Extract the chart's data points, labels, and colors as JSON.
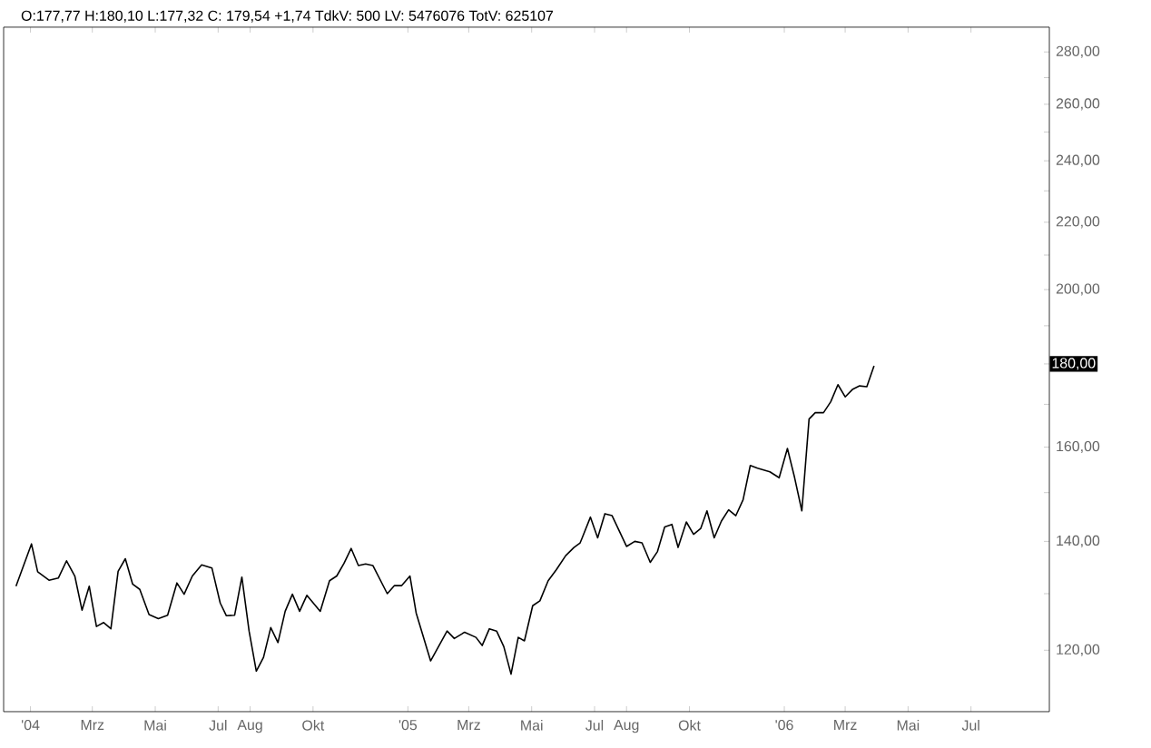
{
  "chart_data": {
    "type": "line",
    "title": "O:177,77 H:180,10 L:177,32 C: 179,54 +1,74 TdkV: 500 LV: 5476076 TotV: 625107",
    "x": [
      "2003-12-18",
      "2004-01-02",
      "2004-01-08",
      "2004-01-19",
      "2004-01-28",
      "2004-02-05",
      "2004-02-13",
      "2004-02-20",
      "2004-02-27",
      "2004-03-05",
      "2004-03-12",
      "2004-03-19",
      "2004-03-26",
      "2004-04-02",
      "2004-04-09",
      "2004-04-16",
      "2004-04-25",
      "2004-05-04",
      "2004-05-13",
      "2004-05-22",
      "2004-05-29",
      "2004-06-06",
      "2004-06-15",
      "2004-06-25",
      "2004-07-03",
      "2004-07-09",
      "2004-07-17",
      "2004-07-24",
      "2004-07-31",
      "2004-08-07",
      "2004-08-14",
      "2004-08-21",
      "2004-08-28",
      "2004-09-04",
      "2004-09-11",
      "2004-09-18",
      "2004-09-25",
      "2004-10-08",
      "2004-10-17",
      "2004-10-24",
      "2004-10-31",
      "2004-11-07",
      "2004-11-14",
      "2004-11-21",
      "2004-11-28",
      "2004-12-12",
      "2004-12-19",
      "2004-12-26",
      "2005-01-03",
      "2005-01-09",
      "2005-01-23",
      "2005-02-08",
      "2005-02-15",
      "2005-02-25",
      "2005-03-08",
      "2005-03-14",
      "2005-03-21",
      "2005-03-28",
      "2005-04-04",
      "2005-04-11",
      "2005-04-18",
      "2005-04-24",
      "2005-05-02",
      "2005-05-09",
      "2005-05-17",
      "2005-05-25",
      "2005-06-03",
      "2005-06-11",
      "2005-06-17",
      "2005-06-19",
      "2005-06-27",
      "2005-07-04",
      "2005-07-11",
      "2005-07-18",
      "2005-08-01",
      "2005-08-09",
      "2005-08-16",
      "2005-08-24",
      "2005-08-31",
      "2005-09-07",
      "2005-09-14",
      "2005-09-20",
      "2005-09-28",
      "2005-10-05",
      "2005-10-12",
      "2005-10-18",
      "2005-10-25",
      "2005-11-01",
      "2005-11-08",
      "2005-11-15",
      "2005-11-22",
      "2005-11-29",
      "2005-12-06",
      "2005-12-18",
      "2005-12-27",
      "2006-01-04",
      "2006-01-11",
      "2006-01-18",
      "2006-01-25",
      "2006-01-31",
      "2006-02-08",
      "2006-02-15",
      "2006-02-22",
      "2006-03-01",
      "2006-03-08",
      "2006-03-15",
      "2006-03-22",
      "2006-03-29"
    ],
    "series": [
      {
        "color": "#000000",
        "values": [
          131.4,
          139.5,
          134.1,
          132.5,
          132.9,
          136.2,
          133.3,
          127.0,
          131.4,
          124.1,
          124.8,
          123.7,
          134.2,
          136.6,
          131.8,
          130.8,
          126.2,
          125.5,
          126.1,
          132.0,
          129.9,
          133.3,
          135.4,
          134.8,
          128.3,
          126.0,
          126.1,
          133.1,
          123.3,
          116.5,
          118.8,
          123.9,
          121.3,
          126.8,
          129.9,
          126.8,
          129.7,
          126.8,
          132.4,
          133.3,
          135.7,
          138.6,
          135.3,
          135.6,
          135.3,
          130.0,
          131.5,
          131.5,
          133.3,
          126.5,
          118.2,
          123.3,
          122.0,
          123.1,
          122.2,
          120.8,
          123.7,
          123.3,
          120.6,
          116.0,
          122.2,
          121.6,
          127.8,
          128.7,
          132.4,
          134.5,
          137.2,
          138.8,
          139.7,
          140.7,
          144.9,
          140.7,
          145.6,
          145.2,
          139.0,
          140.0,
          139.7,
          135.9,
          138.0,
          142.9,
          143.4,
          138.8,
          143.9,
          141.4,
          142.6,
          146.2,
          140.7,
          144.1,
          146.4,
          145.2,
          148.5,
          155.9,
          155.3,
          154.5,
          153.2,
          159.7,
          153.2,
          146.2,
          166.5,
          168.0,
          168.0,
          170.6,
          174.8,
          171.8,
          173.6,
          174.5,
          174.3,
          179.5
        ]
      }
    ],
    "xlim": [
      "2003-12-06",
      "2006-09-15"
    ],
    "xticks": [
      {
        "value": "2004-01-01",
        "label": "'04"
      },
      {
        "value": "2004-03-01",
        "label": "Mrz"
      },
      {
        "value": "2004-05-01",
        "label": "Mai"
      },
      {
        "value": "2004-07-01",
        "label": "Jul"
      },
      {
        "value": "2004-08-01",
        "label": "Aug"
      },
      {
        "value": "2004-10-01",
        "label": "Okt"
      },
      {
        "value": "2005-01-01",
        "label": "'05"
      },
      {
        "value": "2005-03-01",
        "label": "Mrz"
      },
      {
        "value": "2005-05-01",
        "label": "Mai"
      },
      {
        "value": "2005-07-01",
        "label": "Jul"
      },
      {
        "value": "2005-08-01",
        "label": "Aug"
      },
      {
        "value": "2005-10-01",
        "label": "Okt"
      },
      {
        "value": "2006-01-01",
        "label": "'06"
      },
      {
        "value": "2006-03-01",
        "label": "Mrz"
      },
      {
        "value": "2006-05-01",
        "label": "Mai"
      },
      {
        "value": "2006-07-01",
        "label": "Jul"
      }
    ],
    "ylim": [
      110,
      290
    ],
    "log": true,
    "yticks": [
      {
        "value": 120,
        "label": "120,00"
      },
      {
        "value": 130,
        "label": null
      },
      {
        "value": 140,
        "label": "140,00"
      },
      {
        "value": 150,
        "label": null
      },
      {
        "value": 160,
        "label": "160,00"
      },
      {
        "value": 170,
        "label": null
      },
      {
        "value": 180,
        "label": null
      },
      {
        "value": 190,
        "label": null
      },
      {
        "value": 200,
        "label": "200,00"
      },
      {
        "value": 210,
        "label": null
      },
      {
        "value": 220,
        "label": "220,00"
      },
      {
        "value": 230,
        "label": null
      },
      {
        "value": 240,
        "label": "240,00"
      },
      {
        "value": 250,
        "label": null
      },
      {
        "value": 260,
        "label": "260,00"
      },
      {
        "value": 270,
        "label": null
      },
      {
        "value": 280,
        "label": "280,00"
      }
    ],
    "annotations": [
      {
        "text": "180,00",
        "y": 180
      }
    ],
    "marker": "none",
    "line_style": "solid",
    "grid": false
  }
}
